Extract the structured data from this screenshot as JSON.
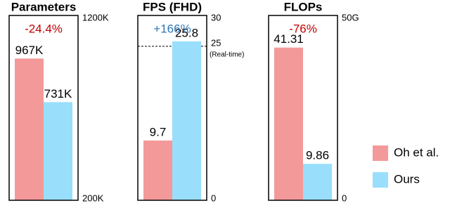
{
  "chart_data": [
    {
      "type": "bar",
      "title": "Parameters",
      "annotation": "-24.4%",
      "annotation_color": "#c00000",
      "ylim": [
        200,
        1200
      ],
      "yticks": [
        {
          "value": 1200,
          "label": "1200K"
        },
        {
          "value": 200,
          "label": "200K"
        }
      ],
      "series": [
        {
          "name": "Oh et al.",
          "color": "#f4999a",
          "values": [
            967
          ],
          "value_labels": [
            "967K"
          ]
        },
        {
          "name": "Ours",
          "color": "#99dffc",
          "values": [
            731
          ],
          "value_labels": [
            "731K"
          ]
        }
      ]
    },
    {
      "type": "bar",
      "title": "FPS (FHD)",
      "annotation": "+166%",
      "annotation_color": "#2e75b6",
      "ylim": [
        0,
        30
      ],
      "yticks": [
        30,
        25,
        0
      ],
      "reference_note": "(Real-time)",
      "series": [
        {
          "name": "Oh et al.",
          "color": "#f4999a",
          "values": [
            9.7
          ]
        },
        {
          "name": "Ours",
          "color": "#99dffc",
          "values": [
            25.8
          ]
        }
      ]
    },
    {
      "type": "bar",
      "title": "FLOPs",
      "annotation": "-76%",
      "annotation_color": "#c00000",
      "ylim": [
        0,
        50
      ],
      "yticks": [
        {
          "value": 50,
          "label": "50G"
        },
        0
      ],
      "series": [
        {
          "name": "Oh et al.",
          "color": "#f4999a",
          "values": [
            41.31
          ]
        },
        {
          "name": "Ours",
          "color": "#99dffc",
          "values": [
            9.86
          ]
        }
      ]
    }
  ]
}
